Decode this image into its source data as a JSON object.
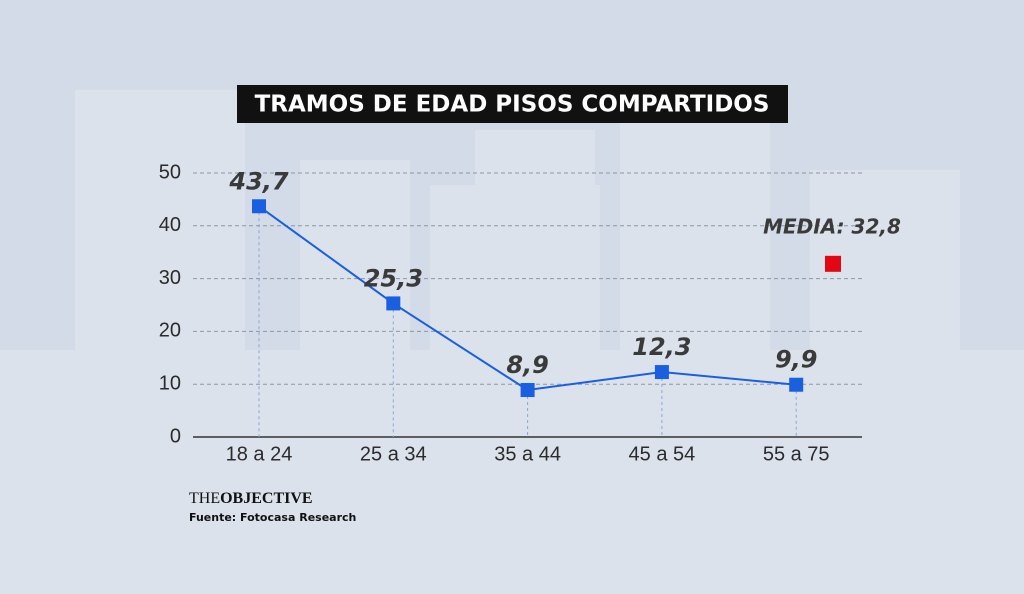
{
  "chart_data": {
    "type": "line",
    "title": "TRAMOS DE EDAD PISOS COMPARTIDOS",
    "categories": [
      "18 a 24",
      "25 a 34",
      "35 a 44",
      "45 a 54",
      "55 a 75"
    ],
    "series": [
      {
        "name": null,
        "color": "#1a5fe0",
        "values": [
          43.7,
          25.3,
          8.9,
          12.3,
          9.9
        ],
        "value_labels": [
          "43,7",
          "25,3",
          "8,9",
          "12,3",
          "9,9"
        ]
      }
    ],
    "mean": {
      "label": "MEDIA: 32,8",
      "value": 32.8,
      "color": "#e30613"
    },
    "ylim": [
      0,
      50
    ],
    "yticks": [
      0,
      10,
      20,
      30,
      40,
      50
    ],
    "grid": true,
    "brand": {
      "light": "THE",
      "bold": "OBJECTIVE"
    },
    "source": "Fuente: Fotocasa Research"
  }
}
